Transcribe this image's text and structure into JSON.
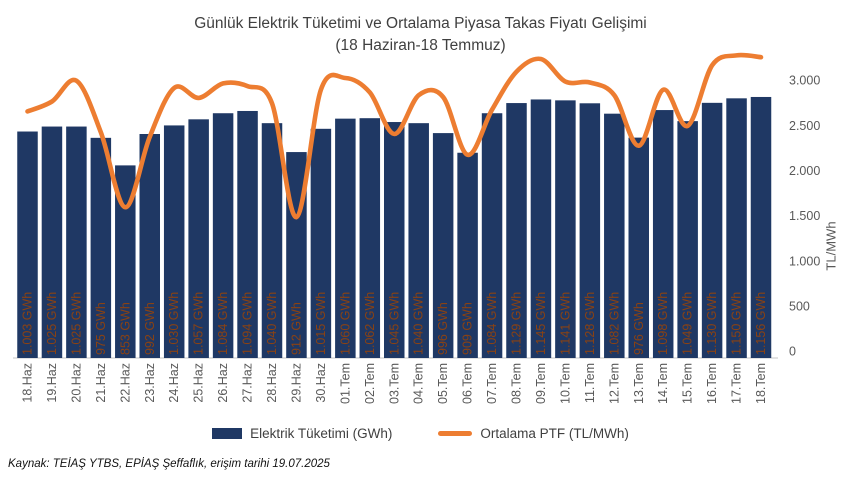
{
  "title": {
    "line1": "Günlük Elektrik Tüketimi ve Ortalama Piyasa Takas Fiyatı Gelişimi",
    "line2": "(18 Haziran-18 Temmuz)"
  },
  "legend": [
    {
      "label": "Elektrik Tüketimi (GWh)",
      "type": "bar"
    },
    {
      "label": "Ortalama PTF (TL/MWh)",
      "type": "line"
    }
  ],
  "source": "Kaynak: TEİAŞ YTBS, EPİAŞ Şeffaflık, erişim tarihi 19.07.2025",
  "colors": {
    "bar": "#1F3864",
    "line": "#ED7D31",
    "bar_label": "#8A4213",
    "axis_text": "#595959",
    "title_text": "#404040",
    "axis_line": "#D9D9D9"
  },
  "right_axis": {
    "label": "TL/MWh",
    "ticks": [
      {
        "label": "0",
        "value": 0
      },
      {
        "label": "500",
        "value": 500
      },
      {
        "label": "1.000",
        "value": 1000
      },
      {
        "label": "1.500",
        "value": 1500
      },
      {
        "label": "2.000",
        "value": 2000
      },
      {
        "label": "2.500",
        "value": 2500
      },
      {
        "label": "3.000",
        "value": 3000
      }
    ]
  },
  "chart_data": {
    "type": "bar",
    "title": "Günlük Elektrik Tüketimi ve Ortalama Piyasa Takas Fiyatı Gelişimi (18 Haziran-18 Temmuz)",
    "categories": [
      "18.Haz",
      "19.Haz",
      "20.Haz",
      "21.Haz",
      "22.Haz",
      "23.Haz",
      "24.Haz",
      "25.Haz",
      "26.Haz",
      "27.Haz",
      "28.Haz",
      "29.Haz",
      "30.Haz",
      "01.Tem",
      "02.Tem",
      "03.Tem",
      "04.Tem",
      "05.Tem",
      "06.Tem",
      "07.Tem",
      "08.Tem",
      "09.Tem",
      "10.Tem",
      "11.Tem",
      "12.Tem",
      "13.Tem",
      "14.Tem",
      "15.Tem",
      "16.Tem",
      "17.Tem",
      "18.Tem"
    ],
    "series": [
      {
        "name": "Elektrik Tüketimi (GWh)",
        "type": "bar",
        "axis": "left",
        "unit": "GWh",
        "values": [
          1003,
          1025,
          1025,
          975,
          853,
          992,
          1030,
          1057,
          1084,
          1094,
          1040,
          912,
          1015,
          1060,
          1062,
          1045,
          1040,
          996,
          909,
          1084,
          1129,
          1145,
          1141,
          1128,
          1082,
          976,
          1098,
          1049,
          1130,
          1150,
          1156
        ]
      },
      {
        "name": "Ortalama PTF (TL/MWh)",
        "type": "line",
        "axis": "right",
        "unit": "TL/MWh",
        "values": [
          2660,
          2770,
          3000,
          2430,
          1600,
          2380,
          2920,
          2810,
          2970,
          2940,
          2750,
          1490,
          2900,
          3030,
          2870,
          2410,
          2840,
          2820,
          2180,
          2680,
          3100,
          3240,
          2990,
          2980,
          2840,
          2280,
          2900,
          2500,
          3170,
          3280,
          3260
        ]
      }
    ],
    "xlabel": "",
    "ylabel": "",
    "right_ylabel": "TL/MWh",
    "right_ylim": [
      0,
      3000
    ],
    "left_ylim": [
      0,
      1240
    ],
    "grid": false,
    "legend_position": "bottom",
    "bar_label_suffix": " GWh"
  }
}
